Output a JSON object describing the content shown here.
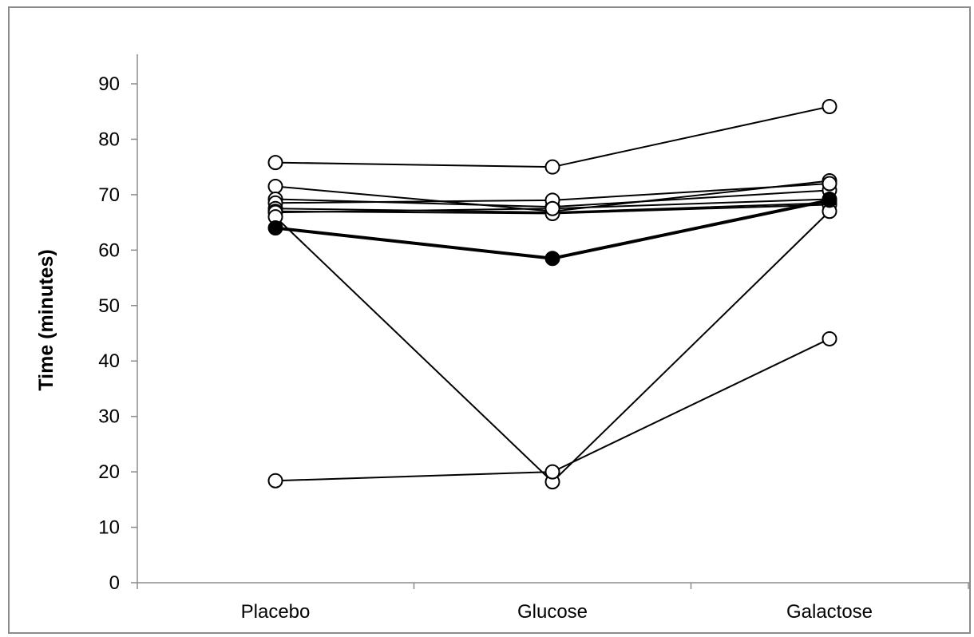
{
  "chart_data": {
    "type": "line",
    "title": "",
    "xlabel": "",
    "ylabel": "Time (minutes)",
    "categories": [
      "Placebo",
      "Glucose",
      "Galactose"
    ],
    "ylim": [
      0,
      90
    ],
    "yticks": [
      0,
      10,
      20,
      30,
      40,
      50,
      60,
      70,
      80,
      90
    ],
    "grid": false,
    "legend": "none",
    "series": [
      {
        "values": [
          75.8,
          75.0,
          85.9
        ],
        "marker": "open",
        "bold": false
      },
      {
        "values": [
          71.5,
          67.0,
          72.5
        ],
        "marker": "open",
        "bold": false
      },
      {
        "values": [
          69.2,
          67.8,
          70.8
        ],
        "marker": "open",
        "bold": false
      },
      {
        "values": [
          68.5,
          69.0,
          72.0
        ],
        "marker": "open",
        "bold": false
      },
      {
        "values": [
          67.5,
          66.8,
          68.5
        ],
        "marker": "open",
        "bold": false
      },
      {
        "values": [
          67.0,
          66.6,
          68.2
        ],
        "marker": "open",
        "bold": false
      },
      {
        "values": [
          66.8,
          67.5,
          69.2
        ],
        "marker": "open",
        "bold": false
      },
      {
        "values": [
          66.0,
          18.2,
          67.0
        ],
        "marker": "open",
        "bold": false
      },
      {
        "values": [
          18.4,
          20.0,
          44.0
        ],
        "marker": "open",
        "bold": false
      },
      {
        "values": [
          64.0,
          58.5,
          69.0
        ],
        "marker": "filled",
        "bold": true
      }
    ],
    "colors": {
      "line": "#000000",
      "axis": "#8c8c8c",
      "frame": "#8c8c8c"
    }
  }
}
